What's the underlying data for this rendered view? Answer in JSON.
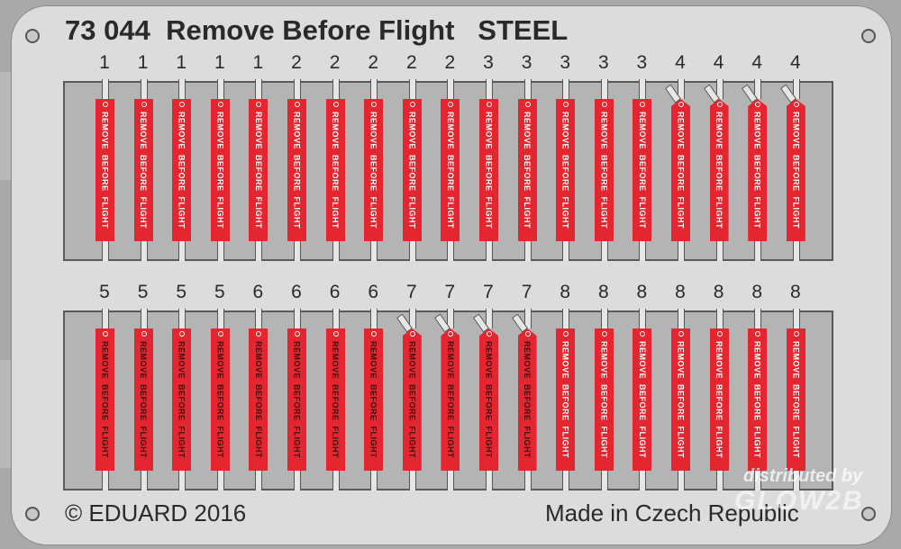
{
  "header": {
    "part_number": "73 044",
    "title": "Remove Before Flight",
    "material": "STEEL"
  },
  "footer": {
    "copyright": "© EDUARD 2016",
    "origin": "Made in Czech Republic"
  },
  "watermark": {
    "line1": "distributed by",
    "logo": "GLOW2B"
  },
  "tag_text": "REMOVE  BEFORE  FLIGHT",
  "colors": {
    "tag": "#e3262f",
    "light_text": "#ffffff",
    "dark_text": "#3a1010",
    "panel": "#b4b4b4",
    "fret": "#dcdcdc"
  },
  "rows": [
    {
      "tags": [
        {
          "n": "1",
          "text": "light",
          "angled": false
        },
        {
          "n": "1",
          "text": "light",
          "angled": false
        },
        {
          "n": "1",
          "text": "light",
          "angled": false
        },
        {
          "n": "1",
          "text": "light",
          "angled": false
        },
        {
          "n": "1",
          "text": "light",
          "angled": false
        },
        {
          "n": "2",
          "text": "light",
          "angled": false
        },
        {
          "n": "2",
          "text": "light",
          "angled": false
        },
        {
          "n": "2",
          "text": "light",
          "angled": false
        },
        {
          "n": "2",
          "text": "light",
          "angled": false
        },
        {
          "n": "2",
          "text": "light",
          "angled": false
        },
        {
          "n": "3",
          "text": "light",
          "angled": false
        },
        {
          "n": "3",
          "text": "light",
          "angled": false
        },
        {
          "n": "3",
          "text": "light",
          "angled": false
        },
        {
          "n": "3",
          "text": "light",
          "angled": false
        },
        {
          "n": "3",
          "text": "light",
          "angled": false
        },
        {
          "n": "4",
          "text": "light",
          "angled": true
        },
        {
          "n": "4",
          "text": "light",
          "angled": true
        },
        {
          "n": "4",
          "text": "light",
          "angled": true
        },
        {
          "n": "4",
          "text": "light",
          "angled": true
        }
      ]
    },
    {
      "tags": [
        {
          "n": "5",
          "text": "dark",
          "angled": false
        },
        {
          "n": "5",
          "text": "dark",
          "angled": false
        },
        {
          "n": "5",
          "text": "dark",
          "angled": false
        },
        {
          "n": "5",
          "text": "dark",
          "angled": false
        },
        {
          "n": "6",
          "text": "dark",
          "angled": false
        },
        {
          "n": "6",
          "text": "dark",
          "angled": false
        },
        {
          "n": "6",
          "text": "dark",
          "angled": false
        },
        {
          "n": "6",
          "text": "dark",
          "angled": false
        },
        {
          "n": "7",
          "text": "dark",
          "angled": true
        },
        {
          "n": "7",
          "text": "dark",
          "angled": true
        },
        {
          "n": "7",
          "text": "dark",
          "angled": true
        },
        {
          "n": "7",
          "text": "dark",
          "angled": true
        },
        {
          "n": "8",
          "text": "light",
          "angled": false
        },
        {
          "n": "8",
          "text": "light",
          "angled": false
        },
        {
          "n": "8",
          "text": "light",
          "angled": false
        },
        {
          "n": "8",
          "text": "light",
          "angled": false
        },
        {
          "n": "8",
          "text": "light",
          "angled": false
        },
        {
          "n": "8",
          "text": "light",
          "angled": false
        },
        {
          "n": "8",
          "text": "light",
          "angled": false
        }
      ]
    }
  ]
}
